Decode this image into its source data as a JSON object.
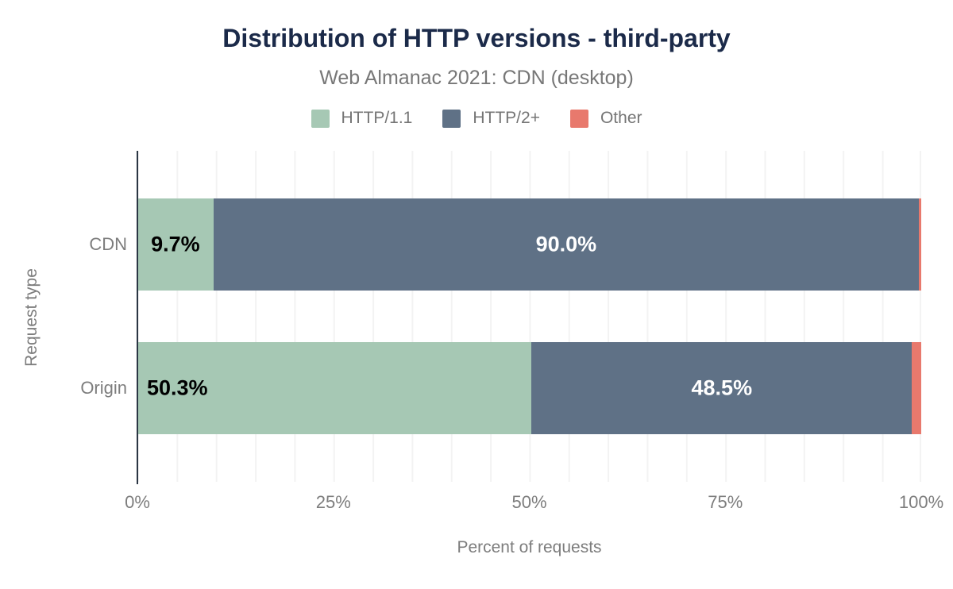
{
  "header": {
    "title": "Distribution of HTTP versions - third-party",
    "subtitle": "Web Almanac 2021: CDN (desktop)"
  },
  "colors": {
    "title_text": "#1b2a49",
    "muted_text": "#7d7d7d",
    "gridline": "#f3f3f3",
    "axis_line": "#2b3644"
  },
  "chart_data": {
    "type": "bar",
    "orientation": "horizontal",
    "stacked": true,
    "title": "Distribution of HTTP versions - third-party",
    "subtitle": "Web Almanac 2021: CDN (desktop)",
    "xlabel": "Percent of requests",
    "ylabel": "Request type",
    "xlim": [
      0,
      100
    ],
    "x_ticks": [
      "0%",
      "25%",
      "50%",
      "75%",
      "100%"
    ],
    "grid": "vertical lines every 5%",
    "legend_position": "top",
    "categories": [
      "CDN",
      "Origin"
    ],
    "series": [
      {
        "name": "HTTP/1.1",
        "color": "#a6c8b4",
        "label_color": "#000000",
        "values": [
          9.7,
          50.3
        ],
        "labels": [
          "9.7%",
          "50.3%"
        ],
        "label_align": [
          "center",
          "start"
        ]
      },
      {
        "name": "HTTP/2+",
        "color": "#5f7186",
        "label_color": "#ffffff",
        "values": [
          90.0,
          48.5
        ],
        "labels": [
          "90.0%",
          "48.5%"
        ],
        "label_align": [
          "center",
          "center"
        ]
      },
      {
        "name": "Other",
        "color": "#e8796d",
        "label_color": null,
        "values": [
          0.3,
          1.2
        ],
        "labels": [
          null,
          null
        ],
        "label_align": [
          null,
          null
        ]
      }
    ]
  }
}
